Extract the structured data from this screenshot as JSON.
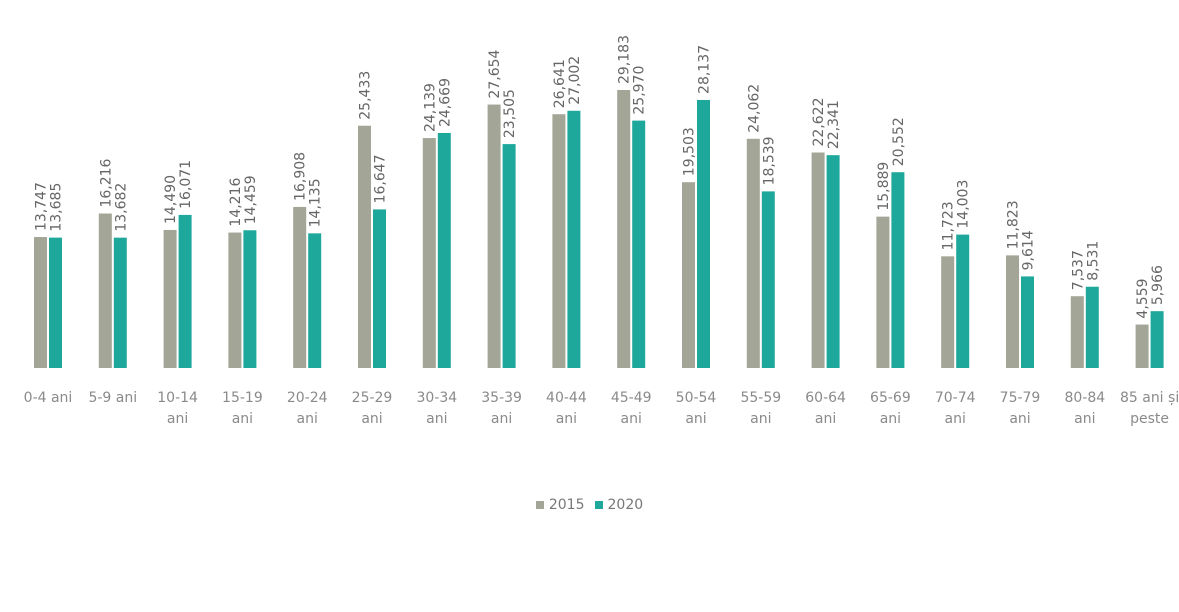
{
  "chart_data": {
    "type": "bar",
    "categories": [
      "0-4 ani",
      "5-9 ani",
      "10-14 ani",
      "15-19 ani",
      "20-24 ani",
      "25-29 ani",
      "30-34 ani",
      "35-39 ani",
      "40-44 ani",
      "45-49 ani",
      "50-54 ani",
      "55-59 ani",
      "60-64 ani",
      "65-69 ani",
      "70-74 ani",
      "75-79 ani",
      "80-84 ani",
      "85 ani și peste"
    ],
    "series": [
      {
        "name": "2015",
        "color": "#a3a596",
        "values": [
          13747,
          16216,
          14490,
          14216,
          16908,
          25433,
          24139,
          27654,
          26641,
          29183,
          19503,
          24062,
          22622,
          15889,
          11723,
          11823,
          7537,
          4559
        ],
        "value_labels": [
          "13,747",
          "16,216",
          "14,490",
          "14,216",
          "16,908",
          "25,433",
          "24,139",
          "27,654",
          "26,641",
          "29,183",
          "19,503",
          "24,062",
          "22,622",
          "15,889",
          "11,723",
          "11,823",
          "7,537",
          "4,559"
        ]
      },
      {
        "name": "2020",
        "color": "#1ea89c",
        "values": [
          13685,
          13682,
          16071,
          14459,
          14135,
          16647,
          24669,
          23505,
          27002,
          25970,
          28137,
          18539,
          22341,
          20552,
          14003,
          9614,
          8531,
          5966
        ],
        "value_labels": [
          "13,685",
          "13,682",
          "16,071",
          "14,459",
          "14,135",
          "16,647",
          "24,669",
          "23,505",
          "27,002",
          "25,970",
          "28,137",
          "18,539",
          "22,341",
          "20,552",
          "14,003",
          "9,614",
          "8,531",
          "5,966"
        ]
      }
    ],
    "legend": "bottom"
  }
}
